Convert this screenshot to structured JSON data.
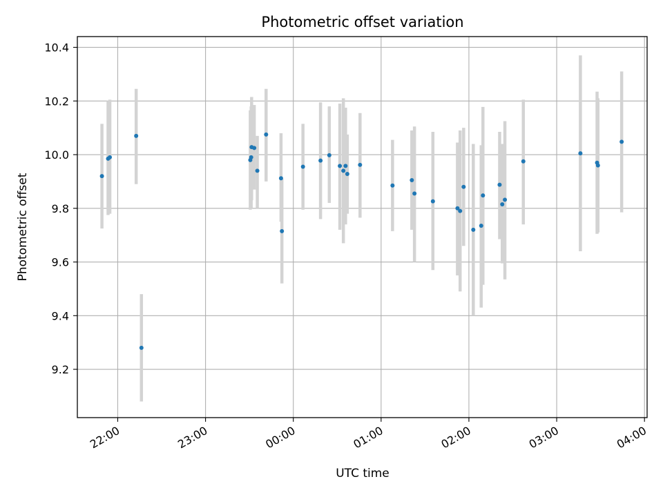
{
  "chart_data": {
    "type": "scatter",
    "title": "Photometric offset variation",
    "xlabel": "UTC time",
    "ylabel": "Photometric offset",
    "grid": true,
    "x_unit": "hours since 00:00 UTC",
    "xlim": [
      -2.46,
      4.03
    ],
    "ylim": [
      9.02,
      10.44
    ],
    "x_ticks": [
      {
        "value": -2,
        "label": "22:00"
      },
      {
        "value": -1,
        "label": "23:00"
      },
      {
        "value": 0,
        "label": "00:00"
      },
      {
        "value": 1,
        "label": "01:00"
      },
      {
        "value": 2,
        "label": "02:00"
      },
      {
        "value": 3,
        "label": "03:00"
      },
      {
        "value": 4,
        "label": "04:00"
      }
    ],
    "y_ticks": [
      {
        "value": 9.2,
        "label": "9.2"
      },
      {
        "value": 9.4,
        "label": "9.4"
      },
      {
        "value": 9.6,
        "label": "9.6"
      },
      {
        "value": 9.8,
        "label": "9.8"
      },
      {
        "value": 10.0,
        "label": "10.0"
      },
      {
        "value": 10.2,
        "label": "10.2"
      },
      {
        "value": 10.4,
        "label": "10.4"
      }
    ],
    "marker_color": "#1f77b4",
    "errorbar_color": "#d3d3d3",
    "points": [
      {
        "x": -2.18,
        "y": 9.92,
        "lo": 9.725,
        "hi": 10.115
      },
      {
        "x": -2.11,
        "y": 9.985,
        "lo": 9.775,
        "hi": 10.2
      },
      {
        "x": -2.09,
        "y": 9.99,
        "lo": 9.78,
        "hi": 10.205
      },
      {
        "x": -1.79,
        "y": 10.07,
        "lo": 9.89,
        "hi": 10.245
      },
      {
        "x": -1.73,
        "y": 9.28,
        "lo": 9.08,
        "hi": 9.48
      },
      {
        "x": -0.49,
        "y": 9.98,
        "lo": 9.795,
        "hi": 10.165
      },
      {
        "x": -0.48,
        "y": 9.99,
        "lo": 9.8,
        "hi": 10.18
      },
      {
        "x": -0.475,
        "y": 10.028,
        "lo": 9.83,
        "hi": 10.215
      },
      {
        "x": -0.445,
        "y": 10.025,
        "lo": 9.87,
        "hi": 10.185
      },
      {
        "x": -0.41,
        "y": 9.94,
        "lo": 9.8,
        "hi": 10.07
      },
      {
        "x": -0.31,
        "y": 10.075,
        "lo": 9.9,
        "hi": 10.245
      },
      {
        "x": -0.14,
        "y": 9.912,
        "lo": 9.75,
        "hi": 10.08
      },
      {
        "x": -0.13,
        "y": 9.715,
        "lo": 9.52,
        "hi": 9.91
      },
      {
        "x": 0.11,
        "y": 9.955,
        "lo": 9.795,
        "hi": 10.115
      },
      {
        "x": 0.31,
        "y": 9.978,
        "lo": 9.76,
        "hi": 10.195
      },
      {
        "x": 0.41,
        "y": 9.998,
        "lo": 9.82,
        "hi": 10.18
      },
      {
        "x": 0.53,
        "y": 9.958,
        "lo": 9.72,
        "hi": 10.19
      },
      {
        "x": 0.57,
        "y": 9.94,
        "lo": 9.67,
        "hi": 10.21
      },
      {
        "x": 0.595,
        "y": 9.958,
        "lo": 9.74,
        "hi": 10.175
      },
      {
        "x": 0.615,
        "y": 9.928,
        "lo": 9.78,
        "hi": 10.075
      },
      {
        "x": 0.76,
        "y": 9.962,
        "lo": 9.765,
        "hi": 10.155
      },
      {
        "x": 1.13,
        "y": 9.885,
        "lo": 9.715,
        "hi": 10.055
      },
      {
        "x": 1.35,
        "y": 9.905,
        "lo": 9.72,
        "hi": 10.09
      },
      {
        "x": 1.38,
        "y": 9.855,
        "lo": 9.6,
        "hi": 10.105
      },
      {
        "x": 1.59,
        "y": 9.826,
        "lo": 9.57,
        "hi": 10.085
      },
      {
        "x": 1.87,
        "y": 9.8,
        "lo": 9.55,
        "hi": 10.045
      },
      {
        "x": 1.9,
        "y": 9.79,
        "lo": 9.49,
        "hi": 10.09
      },
      {
        "x": 1.94,
        "y": 9.88,
        "lo": 9.66,
        "hi": 10.1
      },
      {
        "x": 2.05,
        "y": 9.72,
        "lo": 9.4,
        "hi": 10.04
      },
      {
        "x": 2.14,
        "y": 9.735,
        "lo": 9.43,
        "hi": 10.035
      },
      {
        "x": 2.16,
        "y": 9.848,
        "lo": 9.515,
        "hi": 10.178
      },
      {
        "x": 2.35,
        "y": 9.888,
        "lo": 9.685,
        "hi": 10.085
      },
      {
        "x": 2.38,
        "y": 9.815,
        "lo": 9.595,
        "hi": 10.04
      },
      {
        "x": 2.41,
        "y": 9.832,
        "lo": 9.535,
        "hi": 10.125
      },
      {
        "x": 2.62,
        "y": 9.975,
        "lo": 9.74,
        "hi": 10.205
      },
      {
        "x": 3.27,
        "y": 10.005,
        "lo": 9.64,
        "hi": 10.37
      },
      {
        "x": 3.46,
        "y": 9.97,
        "lo": 9.705,
        "hi": 10.235
      },
      {
        "x": 3.47,
        "y": 9.96,
        "lo": 9.71,
        "hi": 10.21
      },
      {
        "x": 3.74,
        "y": 10.048,
        "lo": 9.785,
        "hi": 10.31
      }
    ]
  }
}
